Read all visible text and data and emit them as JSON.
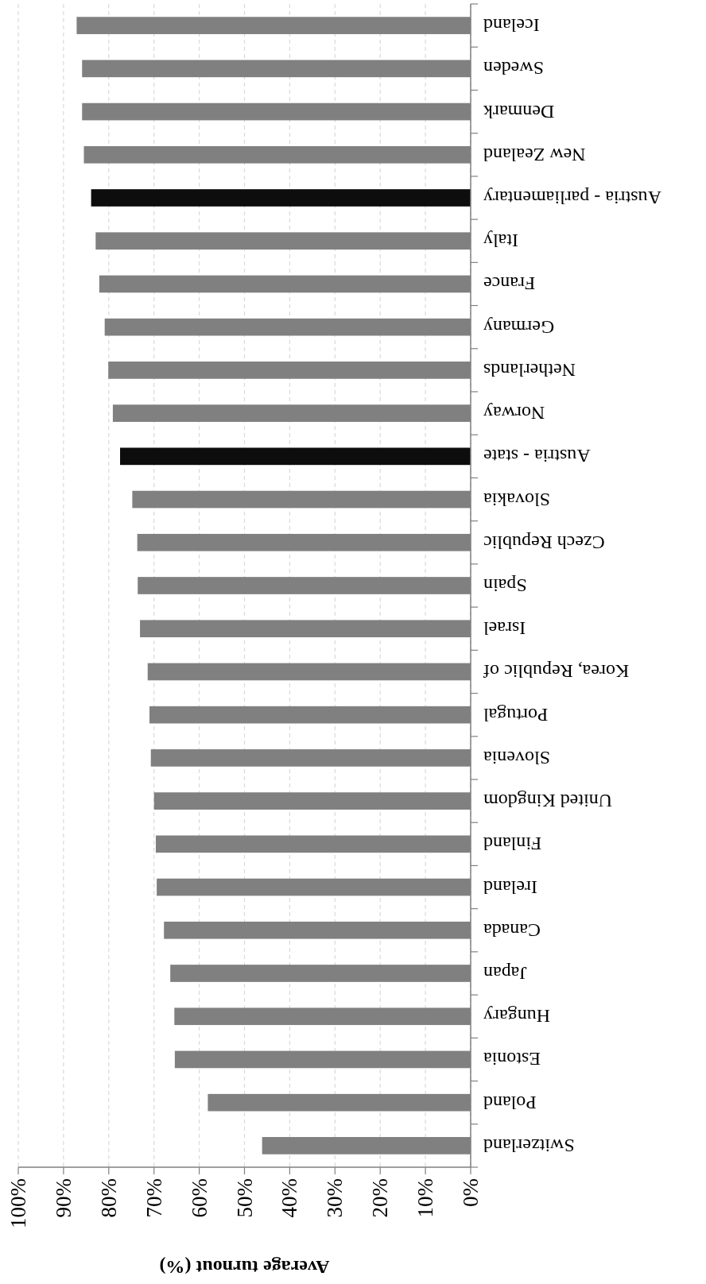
{
  "chart_data": {
    "type": "bar",
    "orientation": "horizontal",
    "xlabel": "Average turnout (%)",
    "categories": [
      "Iceland",
      "Sweden",
      "Denmark",
      "New Zealand",
      "Austria - parliamentary",
      "Italy",
      "France",
      "Germany",
      "Netherlands",
      "Norway",
      "Austria - state",
      "Slovakia",
      "Czech Republic",
      "Spain",
      "Israel",
      "Korea, Republic of",
      "Portugal",
      "Slovenia",
      "United Kingdom",
      "Finland",
      "Ireland",
      "Canada",
      "Japan",
      "Hungary",
      "Estonia",
      "Poland",
      "Switzerland"
    ],
    "values": [
      87.1,
      85.9,
      85.9,
      85.5,
      83.9,
      82.9,
      82.1,
      80.9,
      80.1,
      79.1,
      77.5,
      74.8,
      73.7,
      73.6,
      73.1,
      71.4,
      71.0,
      70.7,
      70.0,
      69.6,
      69.4,
      67.8,
      66.4,
      65.5,
      65.4,
      58.1,
      46.1
    ],
    "colors": [
      "#808080",
      "#808080",
      "#808080",
      "#808080",
      "#0d0d0d",
      "#808080",
      "#808080",
      "#808080",
      "#808080",
      "#808080",
      "#0d0d0d",
      "#808080",
      "#808080",
      "#808080",
      "#808080",
      "#808080",
      "#808080",
      "#808080",
      "#808080",
      "#808080",
      "#808080",
      "#808080",
      "#808080",
      "#808080",
      "#808080",
      "#808080",
      "#808080"
    ],
    "xlim": [
      100,
      0
    ],
    "xticks": [
      {
        "value": 0,
        "label": "0%"
      },
      {
        "value": 10,
        "label": "10%"
      },
      {
        "value": 20,
        "label": "20%"
      },
      {
        "value": 30,
        "label": "30%"
      },
      {
        "value": 40,
        "label": "40%"
      },
      {
        "value": 50,
        "label": "50%"
      },
      {
        "value": 60,
        "label": "60%"
      },
      {
        "value": 70,
        "label": "70%"
      },
      {
        "value": 80,
        "label": "80%"
      },
      {
        "value": 90,
        "label": "90%"
      },
      {
        "value": 100,
        "label": "100%"
      }
    ],
    "grid": "x"
  }
}
